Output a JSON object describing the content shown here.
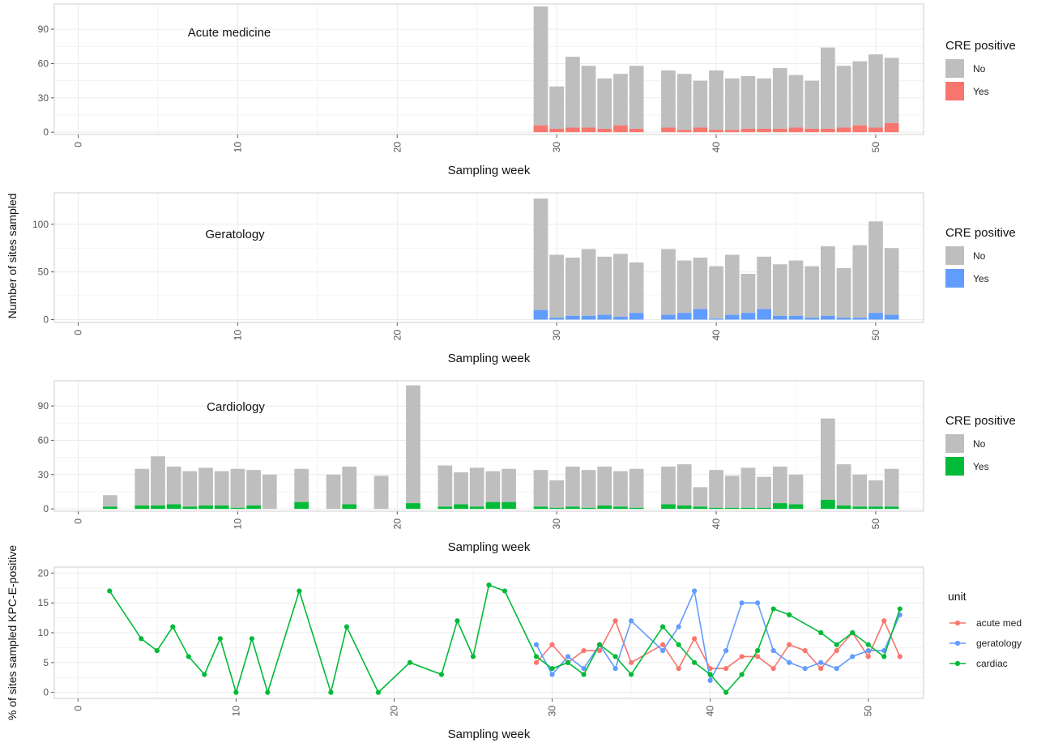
{
  "y_titles": {
    "counts": "Number of sites sampled",
    "percent": "% of sites sampled KPC-E-positive"
  },
  "colors": {
    "bar_no": "#bebebe",
    "yes_acute": "#f8766d",
    "yes_ger": "#619cff",
    "yes_card": "#00ba38",
    "grid": "#ebebeb",
    "border": "#cfcfcf"
  },
  "chart_data": [
    {
      "type": "bar",
      "stacked": true,
      "panel_label": "Acute medicine",
      "xlabel": "Sampling week",
      "x_ticks": [
        0,
        10,
        20,
        30,
        40,
        50
      ],
      "y_ticks": [
        0,
        30,
        60,
        90
      ],
      "xlim": [
        -1.5,
        53
      ],
      "ylim": [
        -2,
        112
      ],
      "legend": {
        "title": "CRE positive",
        "items": [
          "No",
          "Yes"
        ],
        "position": "right"
      },
      "weeks": [
        29,
        30,
        31,
        32,
        33,
        34,
        35,
        37,
        38,
        39,
        40,
        41,
        42,
        43,
        44,
        45,
        46,
        47,
        48,
        49,
        50,
        51
      ],
      "no": [
        104,
        37,
        62,
        54,
        44,
        45,
        55,
        50,
        49,
        41,
        52,
        45,
        46,
        44,
        53,
        46,
        42,
        71,
        54,
        56,
        64,
        57
      ],
      "yes": [
        6,
        3,
        4,
        4,
        3,
        6,
        3,
        4,
        2,
        4,
        2,
        2,
        3,
        3,
        3,
        4,
        3,
        3,
        4,
        6,
        4,
        8
      ]
    },
    {
      "type": "bar",
      "stacked": true,
      "panel_label": "Geratology",
      "xlabel": "Sampling week",
      "x_ticks": [
        0,
        10,
        20,
        30,
        40,
        50
      ],
      "y_ticks": [
        0,
        50,
        100
      ],
      "xlim": [
        -1.5,
        53
      ],
      "ylim": [
        -3,
        133
      ],
      "legend": {
        "title": "CRE positive",
        "items": [
          "No",
          "Yes"
        ],
        "position": "right"
      },
      "weeks": [
        29,
        30,
        31,
        32,
        33,
        34,
        35,
        37,
        38,
        39,
        40,
        41,
        42,
        43,
        44,
        45,
        46,
        47,
        48,
        49,
        50,
        51
      ],
      "no": [
        117,
        66,
        61,
        70,
        61,
        66,
        53,
        69,
        55,
        54,
        55,
        63,
        41,
        55,
        54,
        58,
        54,
        73,
        52,
        76,
        96,
        70
      ],
      "yes": [
        10,
        2,
        4,
        4,
        5,
        3,
        7,
        5,
        7,
        11,
        1,
        5,
        7,
        11,
        4,
        4,
        2,
        4,
        2,
        2,
        7,
        5
      ]
    },
    {
      "type": "bar",
      "stacked": true,
      "panel_label": "Cardiology",
      "xlabel": "Sampling week",
      "x_ticks": [
        0,
        10,
        20,
        30,
        40,
        50
      ],
      "y_ticks": [
        0,
        30,
        60,
        90
      ],
      "xlim": [
        -1.5,
        53
      ],
      "ylim": [
        -2,
        112
      ],
      "legend": {
        "title": "CRE positive",
        "items": [
          "No",
          "Yes"
        ],
        "position": "right"
      },
      "weeks": [
        2,
        4,
        5,
        6,
        7,
        8,
        9,
        10,
        11,
        12,
        14,
        16,
        17,
        19,
        21,
        23,
        24,
        25,
        26,
        27,
        29,
        30,
        31,
        32,
        33,
        34,
        35,
        37,
        38,
        39,
        40,
        41,
        42,
        43,
        44,
        45,
        47,
        48,
        49,
        50,
        51
      ],
      "no": [
        10,
        32,
        43,
        33,
        31,
        33,
        30,
        34,
        31,
        30,
        29,
        30,
        33,
        29,
        103,
        36,
        28,
        34,
        27,
        29,
        32,
        24,
        35,
        33,
        34,
        31,
        34,
        33,
        36,
        17,
        33,
        28,
        35,
        27,
        32,
        26,
        71,
        36,
        28,
        23,
        33
      ],
      "yes": [
        2,
        3,
        3,
        4,
        2,
        3,
        3,
        1,
        3,
        0,
        6,
        0,
        4,
        0,
        5,
        2,
        4,
        2,
        6,
        6,
        2,
        1,
        2,
        1,
        3,
        2,
        1,
        4,
        3,
        2,
        1,
        1,
        1,
        1,
        5,
        4,
        8,
        3,
        2,
        2,
        2
      ]
    },
    {
      "type": "line",
      "xlabel": "Sampling week",
      "ylabel": "% of sites sampled KPC-E-positive",
      "x_ticks": [
        0,
        10,
        20,
        30,
        40,
        50
      ],
      "y_ticks": [
        0,
        5,
        10,
        15,
        20
      ],
      "xlim": [
        -1.5,
        53.5
      ],
      "ylim": [
        -1,
        21
      ],
      "legend": {
        "title": "unit",
        "position": "right"
      },
      "series": [
        {
          "name": "acute med",
          "color": "#f8766d",
          "x": [
            29,
            30,
            31,
            32,
            33,
            34,
            35,
            37,
            38,
            39,
            40,
            41,
            42,
            43,
            44,
            45,
            46,
            47,
            48,
            49,
            50,
            51,
            52
          ],
          "y": [
            5,
            8,
            5,
            7,
            7,
            12,
            5,
            8,
            4,
            9,
            4,
            4,
            6,
            6,
            4,
            8,
            7,
            4,
            7,
            10,
            6,
            12,
            6
          ]
        },
        {
          "name": "geratology",
          "color": "#619cff",
          "x": [
            29,
            30,
            31,
            32,
            33,
            34,
            35,
            37,
            38,
            39,
            40,
            41,
            42,
            43,
            44,
            45,
            46,
            47,
            48,
            49,
            50,
            51,
            52
          ],
          "y": [
            8,
            3,
            6,
            4,
            8,
            4,
            12,
            7,
            11,
            17,
            2,
            7,
            15,
            15,
            7,
            5,
            4,
            5,
            4,
            6,
            7,
            7,
            13
          ]
        },
        {
          "name": "cardiac",
          "color": "#00ba38",
          "x": [
            2,
            4,
            5,
            6,
            7,
            8,
            9,
            10,
            11,
            12,
            14,
            16,
            17,
            19,
            21,
            23,
            24,
            25,
            26,
            27,
            29,
            30,
            31,
            32,
            33,
            34,
            35,
            37,
            38,
            39,
            40,
            41,
            42,
            43,
            44,
            45,
            47,
            48,
            49,
            50,
            51,
            52
          ],
          "y": [
            17,
            9,
            7,
            11,
            6,
            3,
            9,
            0,
            9,
            0,
            17,
            0,
            11,
            0,
            5,
            3,
            12,
            6,
            18,
            17,
            6,
            4,
            5,
            3,
            8,
            6,
            3,
            11,
            8,
            5,
            3,
            0,
            3,
            7,
            14,
            13,
            10,
            8,
            10,
            8,
            6,
            14
          ]
        }
      ]
    }
  ]
}
